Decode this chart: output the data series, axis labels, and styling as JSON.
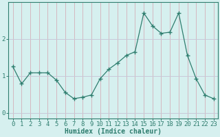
{
  "x": [
    0,
    1,
    2,
    3,
    4,
    5,
    6,
    7,
    8,
    9,
    10,
    11,
    12,
    13,
    14,
    15,
    16,
    17,
    18,
    19,
    20,
    21,
    22,
    23
  ],
  "y": [
    1.25,
    0.78,
    1.08,
    1.08,
    1.08,
    0.88,
    0.55,
    0.38,
    0.42,
    0.48,
    0.92,
    1.18,
    1.35,
    1.55,
    1.65,
    2.7,
    2.35,
    2.15,
    2.18,
    2.7,
    1.55,
    0.92,
    0.48,
    0.38
  ],
  "line_color": "#2e7d6e",
  "marker": "+",
  "marker_size": 5,
  "bg_color": "#d6f0ef",
  "grid_color_h": "#c8c8d8",
  "grid_color_v": "#d4b8c0",
  "axis_color": "#2e7d6e",
  "xlabel": "Humidex (Indice chaleur)",
  "xlabel_fontsize": 7,
  "tick_fontsize": 6.5,
  "ylim": [
    -0.15,
    3.0
  ],
  "xlim": [
    -0.5,
    23.5
  ],
  "yticks": [
    0,
    1,
    2
  ],
  "xticks": [
    0,
    1,
    2,
    3,
    4,
    5,
    6,
    7,
    8,
    9,
    10,
    11,
    12,
    13,
    14,
    15,
    16,
    17,
    18,
    19,
    20,
    21,
    22,
    23
  ],
  "figsize": [
    3.2,
    2.0
  ],
  "dpi": 100
}
